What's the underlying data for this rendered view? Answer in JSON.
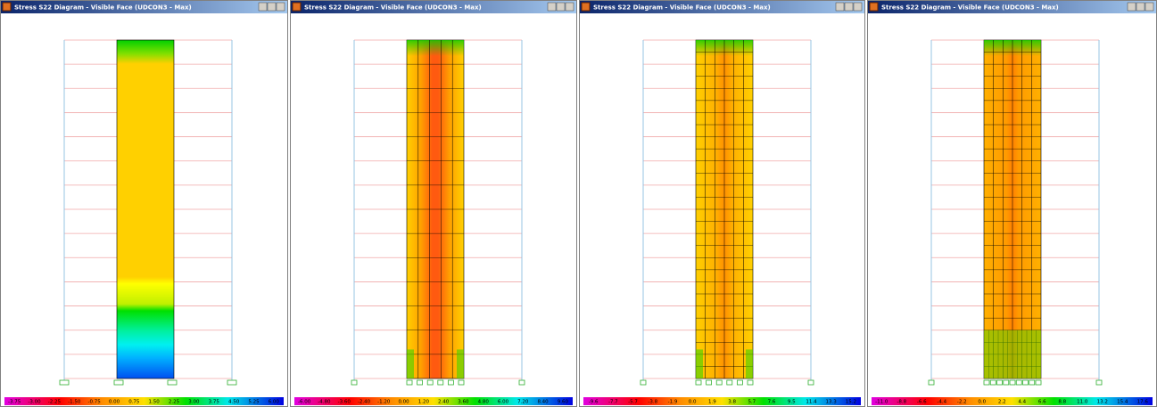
{
  "windows": [
    {
      "title": "Stress S22 Diagram - Visible Face  (UDCON3 - Max)",
      "legend": [
        "-3.75",
        "-3.00",
        "-2.25",
        "-1.50",
        "-0.75",
        "0.00",
        "0.75",
        "1.50",
        "2.25",
        "3.00",
        "3.75",
        "4.50",
        "5.25",
        "6.00"
      ]
    },
    {
      "title": "Stress S22 Diagram - Visible Face  (UDCON3 - Max)",
      "legend": [
        "-6.00",
        "-4.80",
        "-3.60",
        "-2.40",
        "-1.20",
        "0.00",
        "1.20",
        "2.40",
        "3.60",
        "4.80",
        "6.00",
        "7.20",
        "8.40",
        "9.60"
      ]
    },
    {
      "title": "Stress S22 Diagram - Visible Face  (UDCON3 - Max)",
      "legend": [
        "-9.6",
        "-7.7",
        "-5.7",
        "-3.8",
        "-1.9",
        "0.0",
        "1.9",
        "3.8",
        "5.7",
        "7.6",
        "9.5",
        "11.4",
        "13.3",
        "15.2"
      ]
    },
    {
      "title": "Stress S22 Diagram - Visible Face  (UDCON3 - Max)",
      "legend": [
        "-11.0",
        "-8.8",
        "-6.6",
        "-4.4",
        "-2.2",
        "0.0",
        "2.2",
        "4.4",
        "6.6",
        "8.8",
        "11.0",
        "13.2",
        "15.4",
        "17.6"
      ]
    }
  ]
}
